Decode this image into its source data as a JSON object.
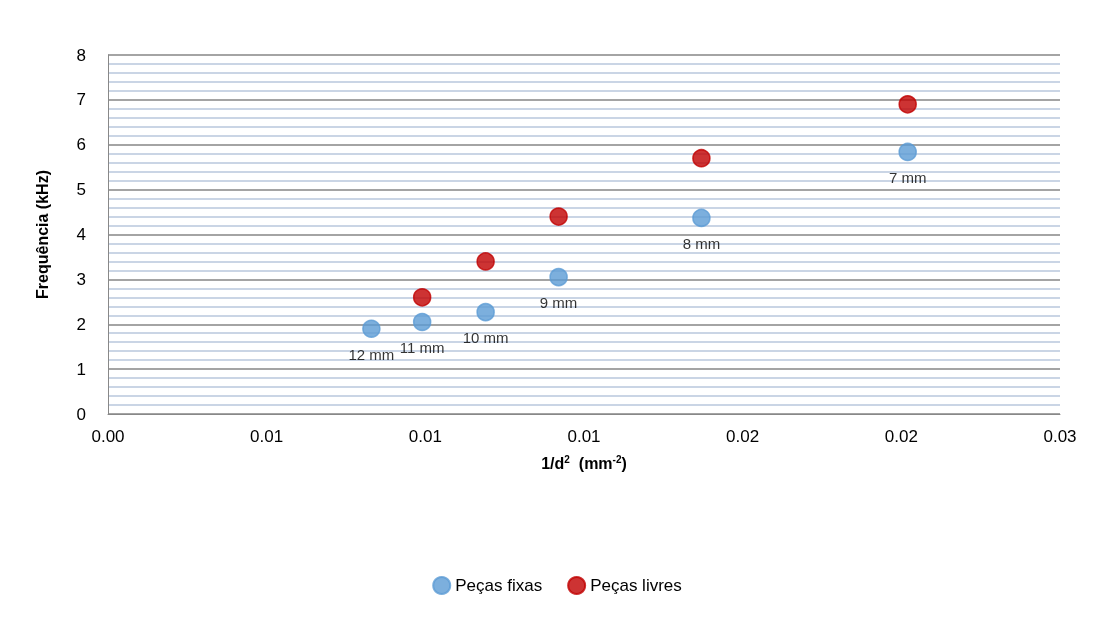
{
  "chart_data": {
    "type": "scatter",
    "xlabel": "1/d$^{2}$  (mm$^{-2}$)",
    "ylabel": "Frequência (kHz)",
    "xlim": [
      0,
      0.03
    ],
    "xticks": [
      {
        "value": 0,
        "label": "0.00"
      },
      {
        "value": 0.005,
        "label": "0.01"
      },
      {
        "value": 0.01,
        "label": "0.01"
      },
      {
        "value": 0.015,
        "label": "0.01"
      },
      {
        "value": 0.02,
        "label": "0.02"
      },
      {
        "value": 0.025,
        "label": "0.02"
      },
      0.03
    ],
    "ylim": [
      0,
      8
    ],
    "yticks": [
      0,
      1,
      2,
      3,
      4,
      5,
      6,
      7,
      8
    ],
    "grid": "y",
    "legend": "bottom",
    "marker": "circle",
    "series": [
      {
        "name": "Peças fixas",
        "color": "#5b9bd5",
        "x": [
          0.0083,
          0.0099,
          0.0119,
          0.0142,
          0.0187,
          0.0252
        ],
        "values": [
          1.9,
          2.05,
          2.27,
          3.05,
          4.37,
          5.84
        ]
      },
      {
        "name": "Peças livres",
        "color": "#c00000",
        "x": [
          0.0099,
          0.0119,
          0.0142,
          0.0187,
          0.0252
        ],
        "values": [
          2.6,
          3.4,
          4.4,
          5.7,
          6.9
        ]
      }
    ],
    "annotations": [
      {
        "text": "12 mm",
        "x": 0.0083,
        "y": 1.9
      },
      {
        "text": "11 mm",
        "x": 0.0099,
        "y": 2.05
      },
      {
        "text": "10 mm",
        "x": 0.0119,
        "y": 2.27
      },
      {
        "text": "9 mm",
        "x": 0.0142,
        "y": 3.05
      },
      {
        "text": "8 mm",
        "x": 0.0187,
        "y": 4.37
      },
      {
        "text": "7 mm",
        "x": 0.0252,
        "y": 5.84
      }
    ]
  }
}
